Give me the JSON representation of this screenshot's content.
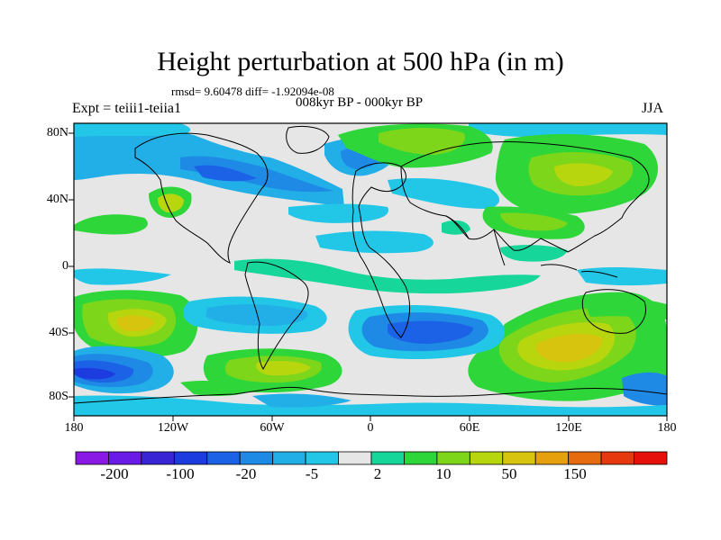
{
  "header": {
    "title": "Height perturbation at 500 hPa (in m)",
    "stats": "rmsd= 9.60478 diff= -1.92094e-08",
    "left_label": "Expt = teiii1-teiia1",
    "center_label": "008kyr BP - 000kyr BP",
    "right_label": "JJA"
  },
  "axes": {
    "y_ticks": [
      "80N",
      "40N",
      "0",
      "40S",
      "80S"
    ],
    "x_ticks": [
      "180",
      "120W",
      "60W",
      "0",
      "60E",
      "120E",
      "180"
    ]
  },
  "colorbar": {
    "labels": [
      "-200",
      "-100",
      "-20",
      "-5",
      "2",
      "10",
      "50",
      "150"
    ],
    "colors": [
      "#8a19e6",
      "#6b1be6",
      "#3a25d4",
      "#1c3ce0",
      "#1c62e6",
      "#1e8ae6",
      "#22aee6",
      "#22c6e6",
      "#e6e6e6",
      "#16d69a",
      "#2ed63a",
      "#7ed61a",
      "#b8d60e",
      "#d6c40e",
      "#e6a00e",
      "#e66a0e",
      "#e63a0e",
      "#e6100a"
    ]
  },
  "map": {
    "neutral_color": "#e6e6e6",
    "land_outline": "coastlines (continents)"
  }
}
